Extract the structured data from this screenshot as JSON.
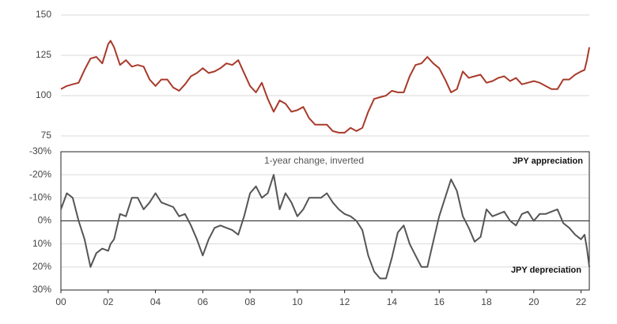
{
  "chart_data": [
    {
      "type": "line",
      "xlim": [
        2000,
        2022.35
      ],
      "ylim": [
        75,
        150
      ],
      "yticks": [
        75,
        100,
        125,
        150
      ],
      "grid": true,
      "series": [
        {
          "color": "#a83a2a",
          "x": [
            2000.0,
            2000.25,
            2000.5,
            2000.75,
            2001.0,
            2001.25,
            2001.5,
            2001.75,
            2002.0,
            2002.1,
            2002.25,
            2002.5,
            2002.75,
            2003.0,
            2003.25,
            2003.5,
            2003.75,
            2004.0,
            2004.25,
            2004.5,
            2004.75,
            2005.0,
            2005.25,
            2005.5,
            2005.75,
            2006.0,
            2006.25,
            2006.5,
            2006.75,
            2007.0,
            2007.25,
            2007.5,
            2007.75,
            2008.0,
            2008.25,
            2008.5,
            2008.75,
            2009.0,
            2009.25,
            2009.5,
            2009.75,
            2010.0,
            2010.25,
            2010.5,
            2010.75,
            2011.0,
            2011.25,
            2011.5,
            2011.75,
            2012.0,
            2012.25,
            2012.5,
            2012.75,
            2013.0,
            2013.25,
            2013.5,
            2013.75,
            2014.0,
            2014.25,
            2014.5,
            2014.75,
            2015.0,
            2015.25,
            2015.5,
            2015.75,
            2016.0,
            2016.25,
            2016.5,
            2016.75,
            2017.0,
            2017.25,
            2017.5,
            2017.75,
            2018.0,
            2018.25,
            2018.5,
            2018.75,
            2019.0,
            2019.25,
            2019.5,
            2019.75,
            2020.0,
            2020.25,
            2020.5,
            2020.75,
            2021.0,
            2021.25,
            2021.5,
            2021.75,
            2022.0,
            2022.15,
            2022.25,
            2022.35
          ],
          "values": [
            104,
            106,
            107,
            108,
            116,
            123,
            124,
            120,
            132,
            134,
            130,
            119,
            122,
            118,
            119,
            118,
            110,
            106,
            110,
            110,
            105,
            103,
            107,
            112,
            114,
            117,
            114,
            115,
            117,
            120,
            119,
            122,
            114,
            106,
            102,
            108,
            98,
            90,
            97,
            95,
            90,
            91,
            93,
            86,
            82,
            82,
            82,
            78,
            77,
            77,
            80,
            78,
            80,
            90,
            98,
            99,
            100,
            103,
            102,
            102,
            112,
            119,
            120,
            124,
            120,
            117,
            110,
            102,
            104,
            115,
            111,
            112,
            113,
            108,
            109,
            111,
            112,
            109,
            111,
            107,
            108,
            109,
            108,
            106,
            104,
            104,
            110,
            110,
            113,
            115,
            116,
            122,
            130
          ]
        }
      ]
    },
    {
      "type": "line",
      "xlim": [
        2000,
        2022.35
      ],
      "ylim": [
        30,
        -30
      ],
      "yticks": [
        {
          "value": -30,
          "label": "-30%"
        },
        {
          "value": -20,
          "label": "-20%"
        },
        {
          "value": -10,
          "label": "-10%"
        },
        {
          "value": 0,
          "label": "0%"
        },
        {
          "value": 10,
          "label": "10%"
        },
        {
          "value": 20,
          "label": "20%"
        },
        {
          "value": 30,
          "label": "30%"
        }
      ],
      "xticks": [
        {
          "value": 2000,
          "label": "00"
        },
        {
          "value": 2002,
          "label": "02"
        },
        {
          "value": 2004,
          "label": "04"
        },
        {
          "value": 2006,
          "label": "06"
        },
        {
          "value": 2008,
          "label": "08"
        },
        {
          "value": 2010,
          "label": "10"
        },
        {
          "value": 2012,
          "label": "12"
        },
        {
          "value": 2014,
          "label": "14"
        },
        {
          "value": 2016,
          "label": "16"
        },
        {
          "value": 2018,
          "label": "18"
        },
        {
          "value": 2020,
          "label": "20"
        },
        {
          "value": 2022,
          "label": "22"
        }
      ],
      "grid": true,
      "annotations": [
        "1-year change, inverted",
        "JPY appreciation",
        "JPY depreciation"
      ],
      "series": [
        {
          "color": "#555555",
          "x": [
            2000.0,
            2000.25,
            2000.5,
            2000.75,
            2001.0,
            2001.25,
            2001.5,
            2001.75,
            2002.0,
            2002.1,
            2002.25,
            2002.5,
            2002.75,
            2003.0,
            2003.25,
            2003.5,
            2003.75,
            2004.0,
            2004.25,
            2004.5,
            2004.75,
            2005.0,
            2005.25,
            2005.5,
            2005.75,
            2006.0,
            2006.25,
            2006.5,
            2006.75,
            2007.0,
            2007.25,
            2007.5,
            2007.75,
            2008.0,
            2008.25,
            2008.5,
            2008.75,
            2009.0,
            2009.25,
            2009.5,
            2009.75,
            2010.0,
            2010.25,
            2010.5,
            2010.75,
            2011.0,
            2011.25,
            2011.5,
            2011.75,
            2012.0,
            2012.25,
            2012.5,
            2012.75,
            2013.0,
            2013.25,
            2013.5,
            2013.75,
            2014.0,
            2014.25,
            2014.5,
            2014.75,
            2015.0,
            2015.25,
            2015.5,
            2015.75,
            2016.0,
            2016.25,
            2016.5,
            2016.75,
            2017.0,
            2017.25,
            2017.5,
            2017.75,
            2018.0,
            2018.25,
            2018.5,
            2018.75,
            2019.0,
            2019.25,
            2019.5,
            2019.75,
            2020.0,
            2020.25,
            2020.5,
            2020.75,
            2021.0,
            2021.25,
            2021.5,
            2021.75,
            2022.0,
            2022.15,
            2022.25,
            2022.35
          ],
          "values": [
            -5,
            -12,
            -10,
            0,
            8,
            20,
            14,
            12,
            13,
            10,
            8,
            -3,
            -2,
            -10,
            -10,
            -5,
            -8,
            -12,
            -8,
            -7,
            -6,
            -2,
            -3,
            2,
            8,
            15,
            8,
            3,
            2,
            3,
            4,
            6,
            -2,
            -12,
            -15,
            -10,
            -12,
            -20,
            -5,
            -12,
            -8,
            -2,
            -5,
            -10,
            -10,
            -10,
            -12,
            -8,
            -5,
            -3,
            -2,
            0,
            4,
            15,
            22,
            25,
            25,
            16,
            5,
            2,
            10,
            15,
            20,
            20,
            9,
            -2,
            -10,
            -18,
            -13,
            -2,
            3,
            9,
            7,
            -5,
            -2,
            -3,
            -4,
            0,
            2,
            -3,
            -4,
            0,
            -3,
            -3,
            -4,
            -5,
            1,
            3,
            6,
            8,
            6,
            12,
            20
          ]
        }
      ]
    }
  ]
}
